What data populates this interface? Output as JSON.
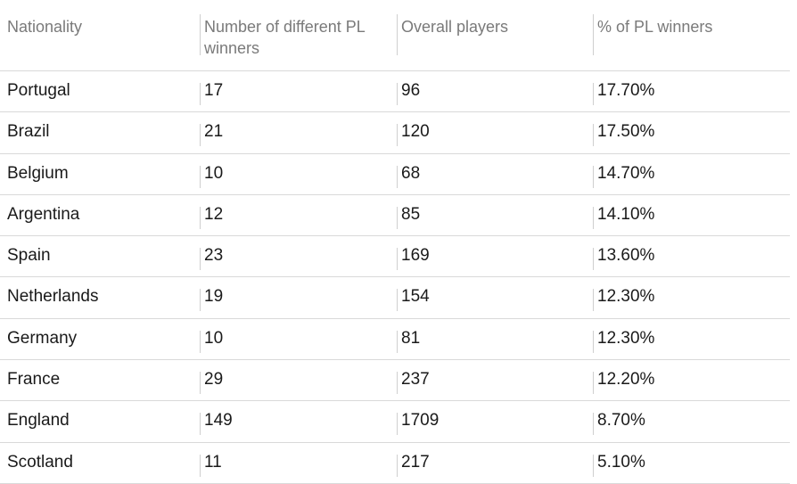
{
  "table": {
    "headers": [
      "Nationality",
      "Number of different PL winners",
      "Overall players",
      "% of PL winners"
    ],
    "rows": [
      [
        "Portugal",
        "17",
        "96",
        "17.70%"
      ],
      [
        "Brazil",
        "21",
        "120",
        "17.50%"
      ],
      [
        "Belgium",
        "10",
        "68",
        "14.70%"
      ],
      [
        "Argentina",
        "12",
        "85",
        "14.10%"
      ],
      [
        "Spain",
        "23",
        "169",
        "13.60%"
      ],
      [
        "Netherlands",
        "19",
        "154",
        "12.30%"
      ],
      [
        "Germany",
        "10",
        "81",
        "12.30%"
      ],
      [
        "France",
        "29",
        "237",
        "12.20%"
      ],
      [
        "England",
        "149",
        "1709",
        "8.70%"
      ],
      [
        "Scotland",
        "11",
        "217",
        "5.10%"
      ]
    ]
  }
}
